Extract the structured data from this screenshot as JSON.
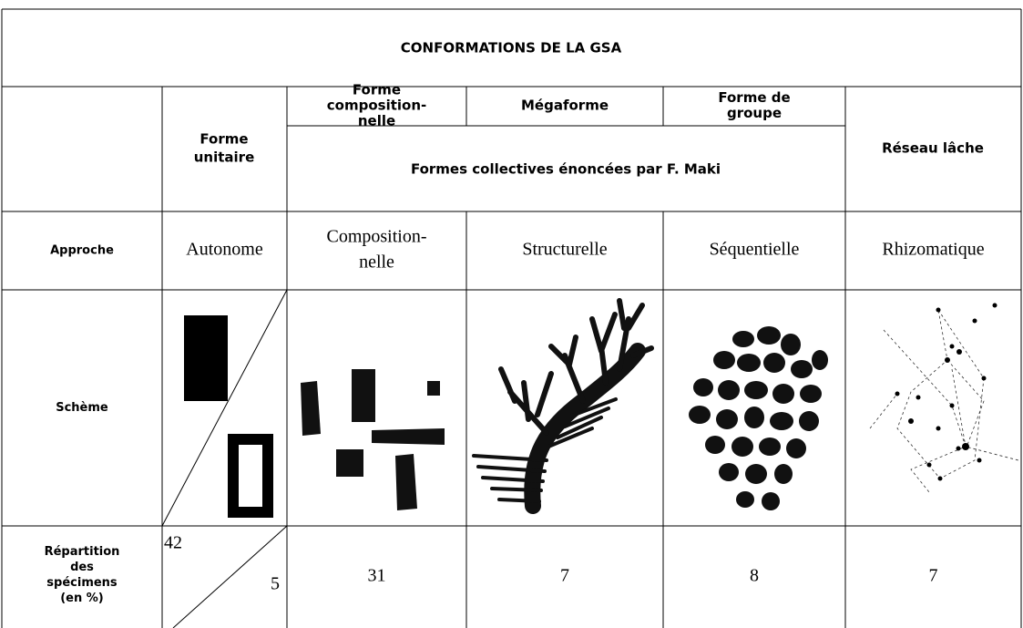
{
  "title": "CONFORMATIONS DE LA GSA",
  "header": {
    "unit": [
      "Forme",
      "unitaire"
    ],
    "collective": [
      [
        "Forme",
        "composition-",
        "nelle"
      ],
      [
        "Mégaforme"
      ],
      [
        "Forme de",
        "groupe"
      ]
    ],
    "collective_note": "Formes collectives énoncées par F. Maki",
    "loose": [
      "Réseau lâche"
    ]
  },
  "rows": [
    {
      "label": [
        "Approche"
      ],
      "cells": [
        [
          "Autonome"
        ],
        [
          "Composition-",
          "nelle"
        ],
        [
          "Structurelle"
        ],
        [
          "Séquentielle"
        ],
        [
          "Rhizomatique"
        ]
      ]
    },
    {
      "label": [
        "Schème"
      ]
    },
    {
      "label": [
        "Répartition",
        "des",
        "spécimens",
        "(en %)"
      ],
      "cells": [
        42,
        5,
        31,
        7,
        8,
        7
      ]
    }
  ]
}
